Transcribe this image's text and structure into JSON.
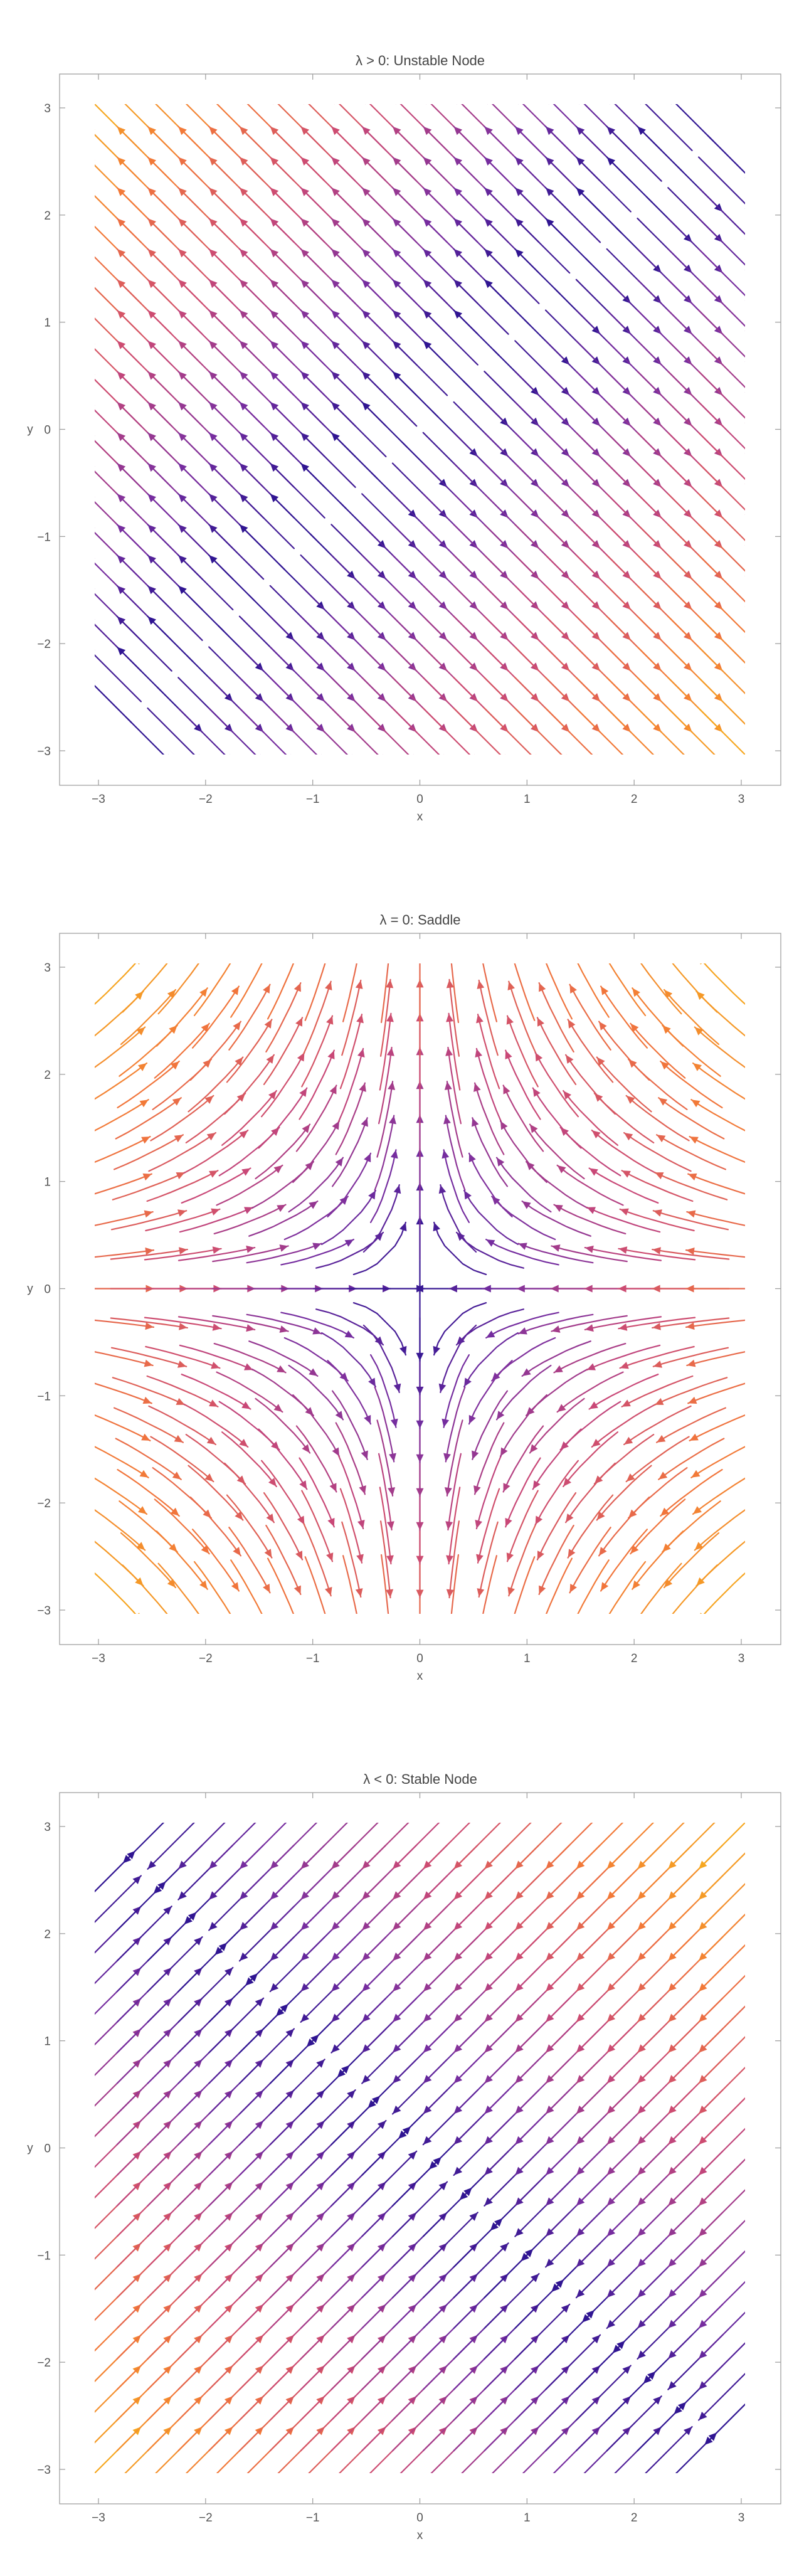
{
  "chart_data": [
    {
      "type": "streamplot",
      "title": "λ > 0: Unstable Node",
      "xlabel": "x",
      "ylabel": "y",
      "xlim": [
        -3,
        3
      ],
      "ylim": [
        -3,
        3
      ],
      "xticks": [
        "−3",
        "−2",
        "−1",
        "0",
        "1",
        "2",
        "3"
      ],
      "yticks": [
        "−3",
        "−2",
        "−1",
        "0",
        "1",
        "2",
        "3"
      ],
      "field": {
        "lambda": 1,
        "dx": "x - y",
        "dy": "y - x"
      },
      "colormap": [
        "#1e0f8f",
        "#7a2fa0",
        "#c94877",
        "#f2763a",
        "#f7b21a"
      ],
      "grid": false
    },
    {
      "type": "streamplot",
      "title": "λ = 0: Saddle",
      "xlabel": "x",
      "ylabel": "y",
      "xlim": [
        -3,
        3
      ],
      "ylim": [
        -3,
        3
      ],
      "xticks": [
        "−3",
        "−2",
        "−1",
        "0",
        "1",
        "2",
        "3"
      ],
      "yticks": [
        "−3",
        "−2",
        "−1",
        "0",
        "1",
        "2",
        "3"
      ],
      "field": {
        "lambda": 0,
        "dx": "-x",
        "dy": "y"
      },
      "colormap": [
        "#1e0f8f",
        "#7a2fa0",
        "#c94877",
        "#f2763a",
        "#f7b21a"
      ],
      "grid": false
    },
    {
      "type": "streamplot",
      "title": "λ < 0: Stable Node",
      "xlabel": "x",
      "ylabel": "y",
      "xlim": [
        -3,
        3
      ],
      "ylim": [
        -3,
        3
      ],
      "xticks": [
        "−3",
        "−2",
        "−1",
        "0",
        "1",
        "2",
        "3"
      ],
      "yticks": [
        "−3",
        "−2",
        "−1",
        "0",
        "1",
        "2",
        "3"
      ],
      "field": {
        "lambda": -1,
        "dx": "-(x + y)",
        "dy": "-(x + y)"
      },
      "colormap": [
        "#1e0f8f",
        "#7a2fa0",
        "#c94877",
        "#f2763a",
        "#f7b21a"
      ],
      "grid": false
    }
  ]
}
